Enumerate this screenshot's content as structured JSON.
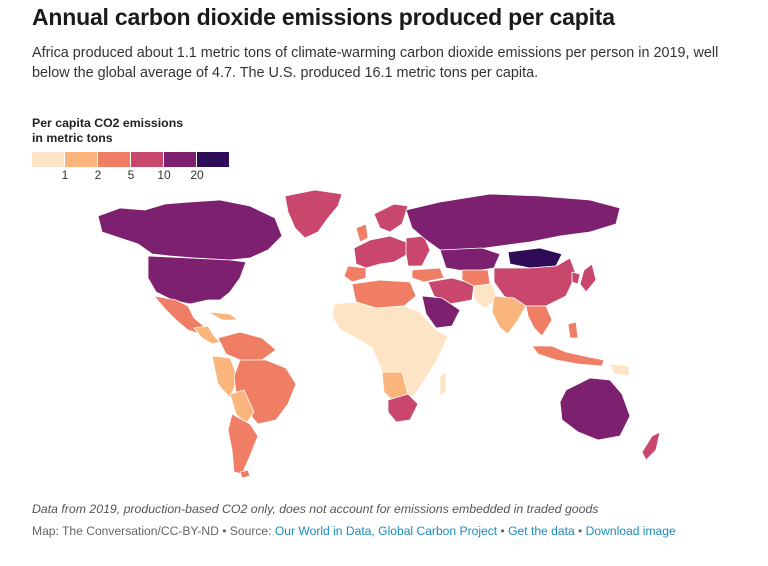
{
  "header": {
    "title": "Annual carbon dioxide emissions produced per capita",
    "subtitle": "Africa produced about 1.1 metric tons of climate-warming carbon dioxide emissions per person in 2019, well below the global average of 4.7. The U.S. produced 16.1 metric tons per capita."
  },
  "legend": {
    "title_line1": "Per capita CO2 emissions",
    "title_line2": "in metric tons",
    "ticks": [
      "1",
      "2",
      "5",
      "10",
      "20"
    ],
    "colors": [
      "#fce4c4",
      "#f9b57b",
      "#ef7e64",
      "#c9476d",
      "#7d2070",
      "#2e0c57"
    ]
  },
  "footer": {
    "note": "Data from 2019, production-based CO2 only, does not account for emissions embedded in traded goods",
    "credit_prefix": "Map: The Conversation/CC-BY-ND",
    "separator": " • ",
    "source_label": "Source: ",
    "source_link": "Our World in Data, Global Carbon Project",
    "get_data_link": "Get the data",
    "download_link": "Download image"
  }
}
